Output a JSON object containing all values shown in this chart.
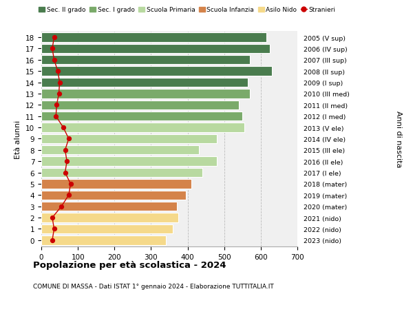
{
  "ages": [
    18,
    17,
    16,
    15,
    14,
    13,
    12,
    11,
    10,
    9,
    8,
    7,
    6,
    5,
    4,
    3,
    2,
    1,
    0
  ],
  "right_labels": [
    "2005 (V sup)",
    "2006 (IV sup)",
    "2007 (III sup)",
    "2008 (II sup)",
    "2009 (I sup)",
    "2010 (III med)",
    "2011 (II med)",
    "2012 (I med)",
    "2013 (V ele)",
    "2014 (IV ele)",
    "2015 (III ele)",
    "2016 (II ele)",
    "2017 (I ele)",
    "2018 (mater)",
    "2019 (mater)",
    "2020 (mater)",
    "2021 (nido)",
    "2022 (nido)",
    "2023 (nido)"
  ],
  "bar_values": [
    615,
    625,
    570,
    630,
    565,
    570,
    540,
    550,
    555,
    480,
    430,
    480,
    440,
    410,
    395,
    370,
    375,
    360,
    340
  ],
  "stranieri_values": [
    35,
    30,
    35,
    45,
    50,
    48,
    42,
    40,
    60,
    75,
    65,
    70,
    65,
    80,
    75,
    55,
    30,
    35,
    30
  ],
  "bar_colors": [
    "#4a7c4e",
    "#4a7c4e",
    "#4a7c4e",
    "#4a7c4e",
    "#4a7c4e",
    "#7aaa6a",
    "#7aaa6a",
    "#7aaa6a",
    "#b8d9a0",
    "#b8d9a0",
    "#b8d9a0",
    "#b8d9a0",
    "#b8d9a0",
    "#d4834a",
    "#d4834a",
    "#d4834a",
    "#f5d98a",
    "#f5d98a",
    "#f5d98a"
  ],
  "legend_labels": [
    "Sec. II grado",
    "Sec. I grado",
    "Scuola Primaria",
    "Scuola Infanzia",
    "Asilo Nido",
    "Stranieri"
  ],
  "legend_colors": [
    "#4a7c4e",
    "#7aaa6a",
    "#b8d9a0",
    "#d4834a",
    "#f5d98a",
    "#cc0000"
  ],
  "title": "Popolazione per età scolastica - 2024",
  "subtitle": "COMUNE DI MASSA - Dati ISTAT 1° gennaio 2024 - Elaborazione TUTTITALIA.IT",
  "ylabel_left": "Età alunni",
  "ylabel_right": "Anni di nascita",
  "xlim": [
    0,
    700
  ],
  "xticks": [
    0,
    100,
    200,
    300,
    400,
    500,
    600,
    700
  ],
  "background_color": "#ffffff",
  "plot_bg_color": "#f0f0f0"
}
